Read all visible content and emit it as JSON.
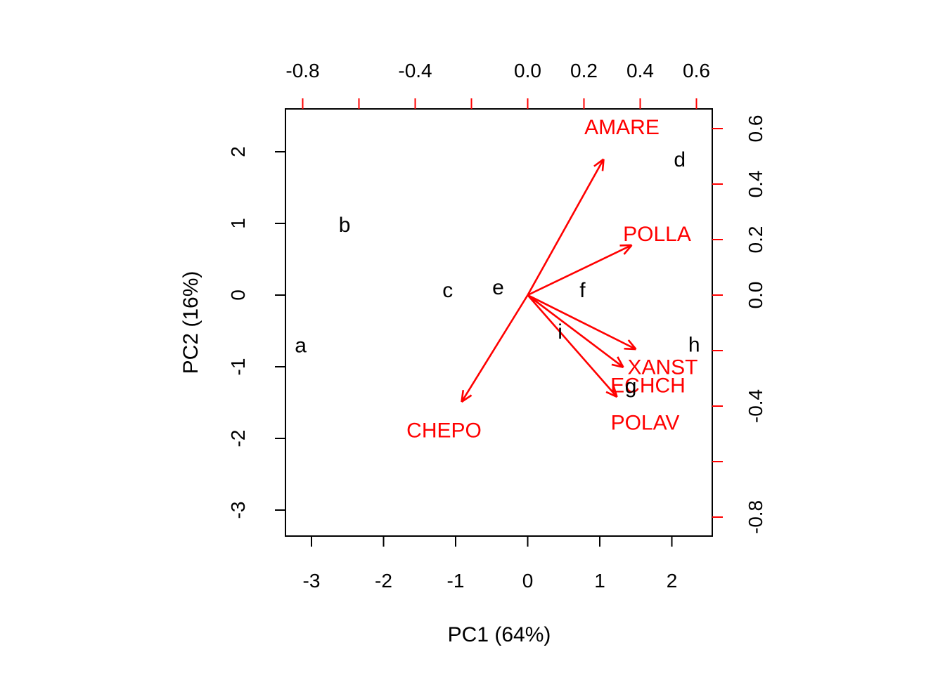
{
  "chart_data": {
    "type": "scatter",
    "subtype": "pca-biplot",
    "title": "",
    "xlabel": "PC1 (64%)",
    "ylabel": "PC2 (16%)",
    "score_axes": {
      "color": "#000000",
      "xlim": [
        -3.35,
        2.56
      ],
      "ylim": [
        -3.36,
        2.58
      ],
      "bottom_ticks": [
        {
          "v": -3,
          "label": "-3"
        },
        {
          "v": -2,
          "label": "-2"
        },
        {
          "v": -1,
          "label": "-1"
        },
        {
          "v": 0,
          "label": "0"
        },
        {
          "v": 1,
          "label": "1"
        },
        {
          "v": 2,
          "label": "2"
        }
      ],
      "left_ticks": [
        {
          "v": 2,
          "label": "2"
        },
        {
          "v": 1,
          "label": "1"
        },
        {
          "v": 0,
          "label": "0"
        },
        {
          "v": -1,
          "label": "-1"
        },
        {
          "v": -2,
          "label": "-2"
        },
        {
          "v": -3,
          "label": "-3"
        }
      ]
    },
    "loading_axes": {
      "color": "#ff0000",
      "xlim": [
        -0.86,
        0.66
      ],
      "ylim": [
        -0.87,
        0.67
      ],
      "top_ticks": [
        {
          "v": -0.8,
          "label": "-0.8"
        },
        {
          "v": -0.6,
          "label": ""
        },
        {
          "v": -0.4,
          "label": "-0.4"
        },
        {
          "v": -0.2,
          "label": ""
        },
        {
          "v": 0.0,
          "label": "0.0"
        },
        {
          "v": 0.2,
          "label": "0.2"
        },
        {
          "v": 0.4,
          "label": "0.4"
        },
        {
          "v": 0.6,
          "label": "0.6"
        }
      ],
      "right_ticks": [
        {
          "v": 0.6,
          "label": "0.6"
        },
        {
          "v": 0.4,
          "label": "0.4"
        },
        {
          "v": 0.2,
          "label": "0.2"
        },
        {
          "v": 0.0,
          "label": "0.0"
        },
        {
          "v": -0.2,
          "label": ""
        },
        {
          "v": -0.4,
          "label": "-0.4"
        },
        {
          "v": -0.6,
          "label": ""
        },
        {
          "v": -0.8,
          "label": "-0.8"
        }
      ]
    },
    "sites": [
      {
        "label": "a",
        "x": -3.15,
        "y": -0.7
      },
      {
        "label": "b",
        "x": -2.54,
        "y": 0.98
      },
      {
        "label": "c",
        "x": -1.11,
        "y": 0.07
      },
      {
        "label": "d",
        "x": 2.11,
        "y": 1.89
      },
      {
        "label": "e",
        "x": -0.41,
        "y": 0.11
      },
      {
        "label": "f",
        "x": 0.76,
        "y": 0.07
      },
      {
        "label": "g",
        "x": 1.43,
        "y": -1.27
      },
      {
        "label": "h",
        "x": 2.31,
        "y": -0.69
      },
      {
        "label": "i",
        "x": 0.45,
        "y": -0.51
      }
    ],
    "species_arrows": [
      {
        "label": "AMARE",
        "x": 0.27,
        "y": 0.49,
        "label_x": 0.335,
        "label_y": 0.605
      },
      {
        "label": "POLLA",
        "x": 0.37,
        "y": 0.18,
        "label_x": 0.46,
        "label_y": 0.22
      },
      {
        "label": "XANST",
        "x": 0.385,
        "y": -0.195,
        "label_x": 0.48,
        "label_y": -0.26
      },
      {
        "label": "ECHCH",
        "x": 0.34,
        "y": -0.26,
        "label_x": 0.4275,
        "label_y": -0.325
      },
      {
        "label": "POLAV",
        "x": 0.3175,
        "y": -0.367,
        "label_x": 0.4175,
        "label_y": -0.46
      },
      {
        "label": "CHEPO",
        "x": -0.235,
        "y": -0.385,
        "label_x": -0.2975,
        "label_y": -0.487
      }
    ],
    "colors": {
      "sites": "#000000",
      "species": "#ff0000",
      "frame": "#000000",
      "background": "#ffffff"
    }
  }
}
